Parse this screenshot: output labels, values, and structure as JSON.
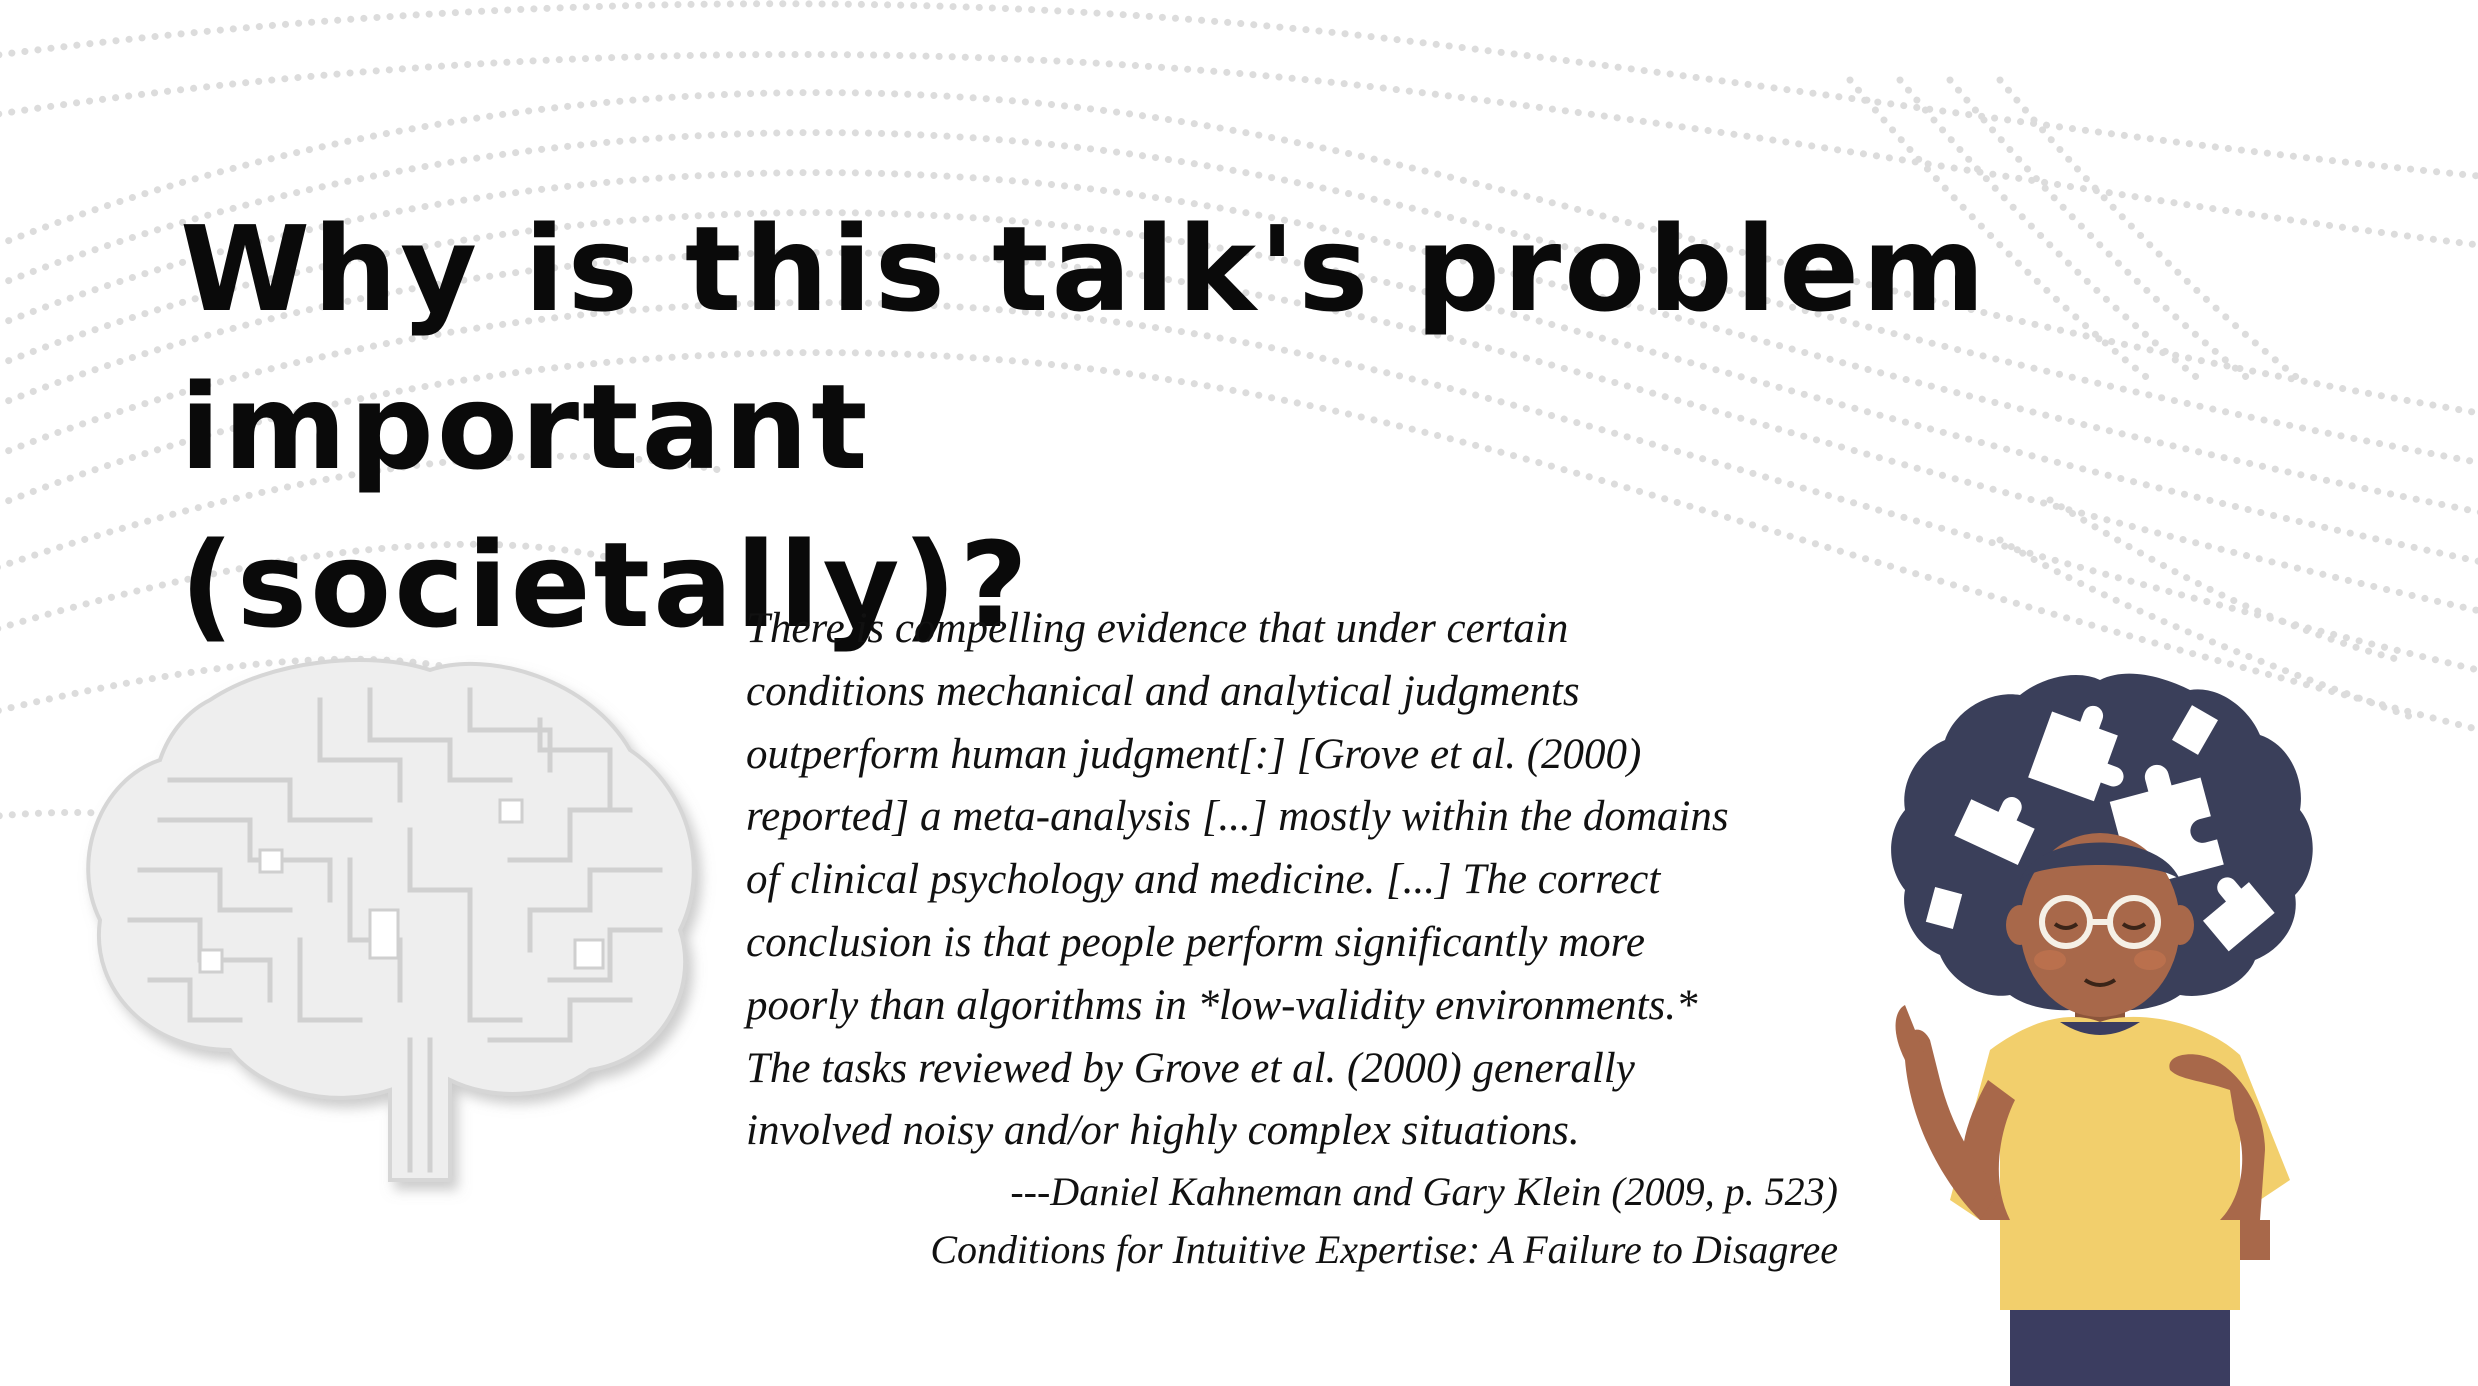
{
  "slide": {
    "title_lines": [
      "Why is this talk's problem important",
      "(societally)?"
    ],
    "quote_lines": [
      "There is compelling evidence that under certain",
      "conditions mechanical and analytical judgments",
      "outperform human judgment[:] [Grove et al. (2000)",
      "reported] a meta-analysis [...] mostly within the domains",
      "of clinical psychology and medicine. [...] The correct",
      "conclusion is that people perform significantly more",
      "poorly than algorithms in *low-validity environments.*",
      "The tasks reviewed by Grove et al. (2000) generally",
      "involved noisy and/or highly complex situations."
    ],
    "attribution_author": "---Daniel Kahneman and Gary Klein (2009, p. 523)",
    "attribution_source": "Conditions for Intuitive Expertise: A Failure to Disagree"
  },
  "illustrations": {
    "left": "circuit-brain-icon",
    "right": "person-with-puzzle-afro-illustration"
  },
  "colors": {
    "text": "#0a0a0a",
    "dots": "#dcdcdc",
    "shirt": "#f2cf6c",
    "hair": "#3a3f5a",
    "skin": "#a8684a",
    "pants": "#3b3d60"
  }
}
